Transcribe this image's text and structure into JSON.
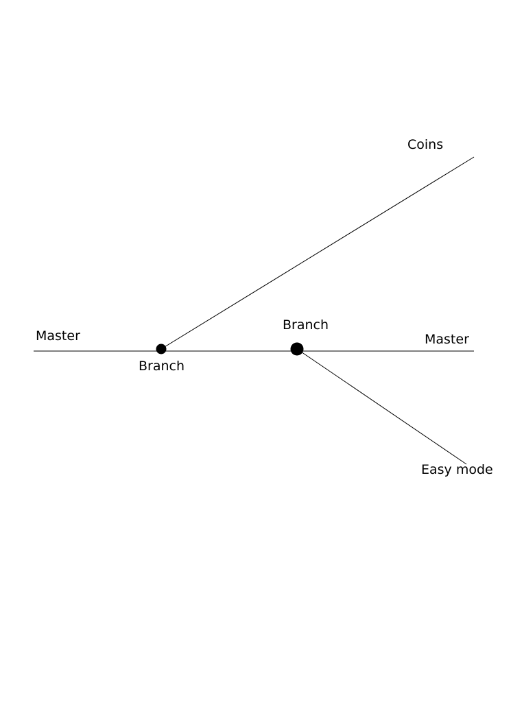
{
  "diagram": {
    "labels": {
      "master_left": "Master",
      "master_right": "Master",
      "branch_first": "Branch",
      "branch_second": "Branch",
      "coins": "Coins",
      "easy_mode": "Easy mode"
    },
    "colors": {
      "line": "#000000",
      "node": "#000000",
      "background": "#ffffff"
    }
  }
}
